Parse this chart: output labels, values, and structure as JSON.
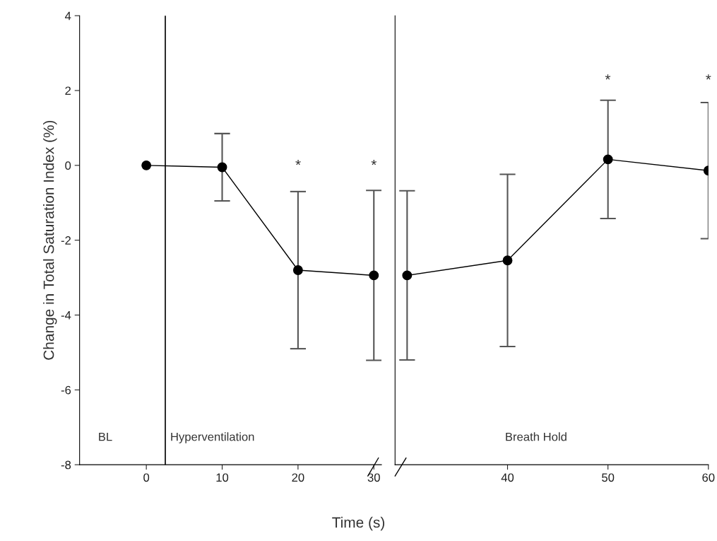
{
  "chart_data": [
    {
      "type": "line",
      "xlabel": "Time (s)",
      "ylabel": "Change in Total Saturation Index (%)",
      "x": [
        0,
        10,
        20,
        30
      ],
      "xlim": [
        -8.8,
        31
      ],
      "xticks": [
        0,
        10,
        20,
        30
      ],
      "ylim": [
        -8,
        4
      ],
      "yticks": [
        -8,
        -6,
        -4,
        -2,
        0,
        2,
        4
      ],
      "series": [
        {
          "color": "#000000",
          "values": [
            0,
            -0.05,
            -2.8,
            -2.94
          ],
          "errors": [
            null,
            0.9,
            2.1,
            2.27
          ]
        }
      ],
      "marker": "circle",
      "line_style": "solid",
      "grid": false,
      "ref_lines": [
        {
          "axis": "x",
          "value": 2.5,
          "color": "#000000"
        }
      ],
      "annotations": [
        "BL",
        "Hyperventilation",
        "*",
        "*"
      ]
    },
    {
      "type": "line",
      "x": [
        30,
        40,
        50,
        60
      ],
      "xlim": [
        28.8,
        60
      ],
      "xticks": [
        40,
        50,
        60
      ],
      "ylim": [
        -8,
        4
      ],
      "tick_labels": "x",
      "series": [
        {
          "color": "#000000",
          "values": [
            -2.94,
            -2.54,
            0.16,
            -0.14
          ],
          "errors": [
            2.26,
            2.3,
            1.58,
            1.82
          ]
        }
      ],
      "marker": "circle",
      "line_style": "solid",
      "grid": false,
      "annotations": [
        "Breath Hold",
        "*",
        "*"
      ]
    }
  ]
}
